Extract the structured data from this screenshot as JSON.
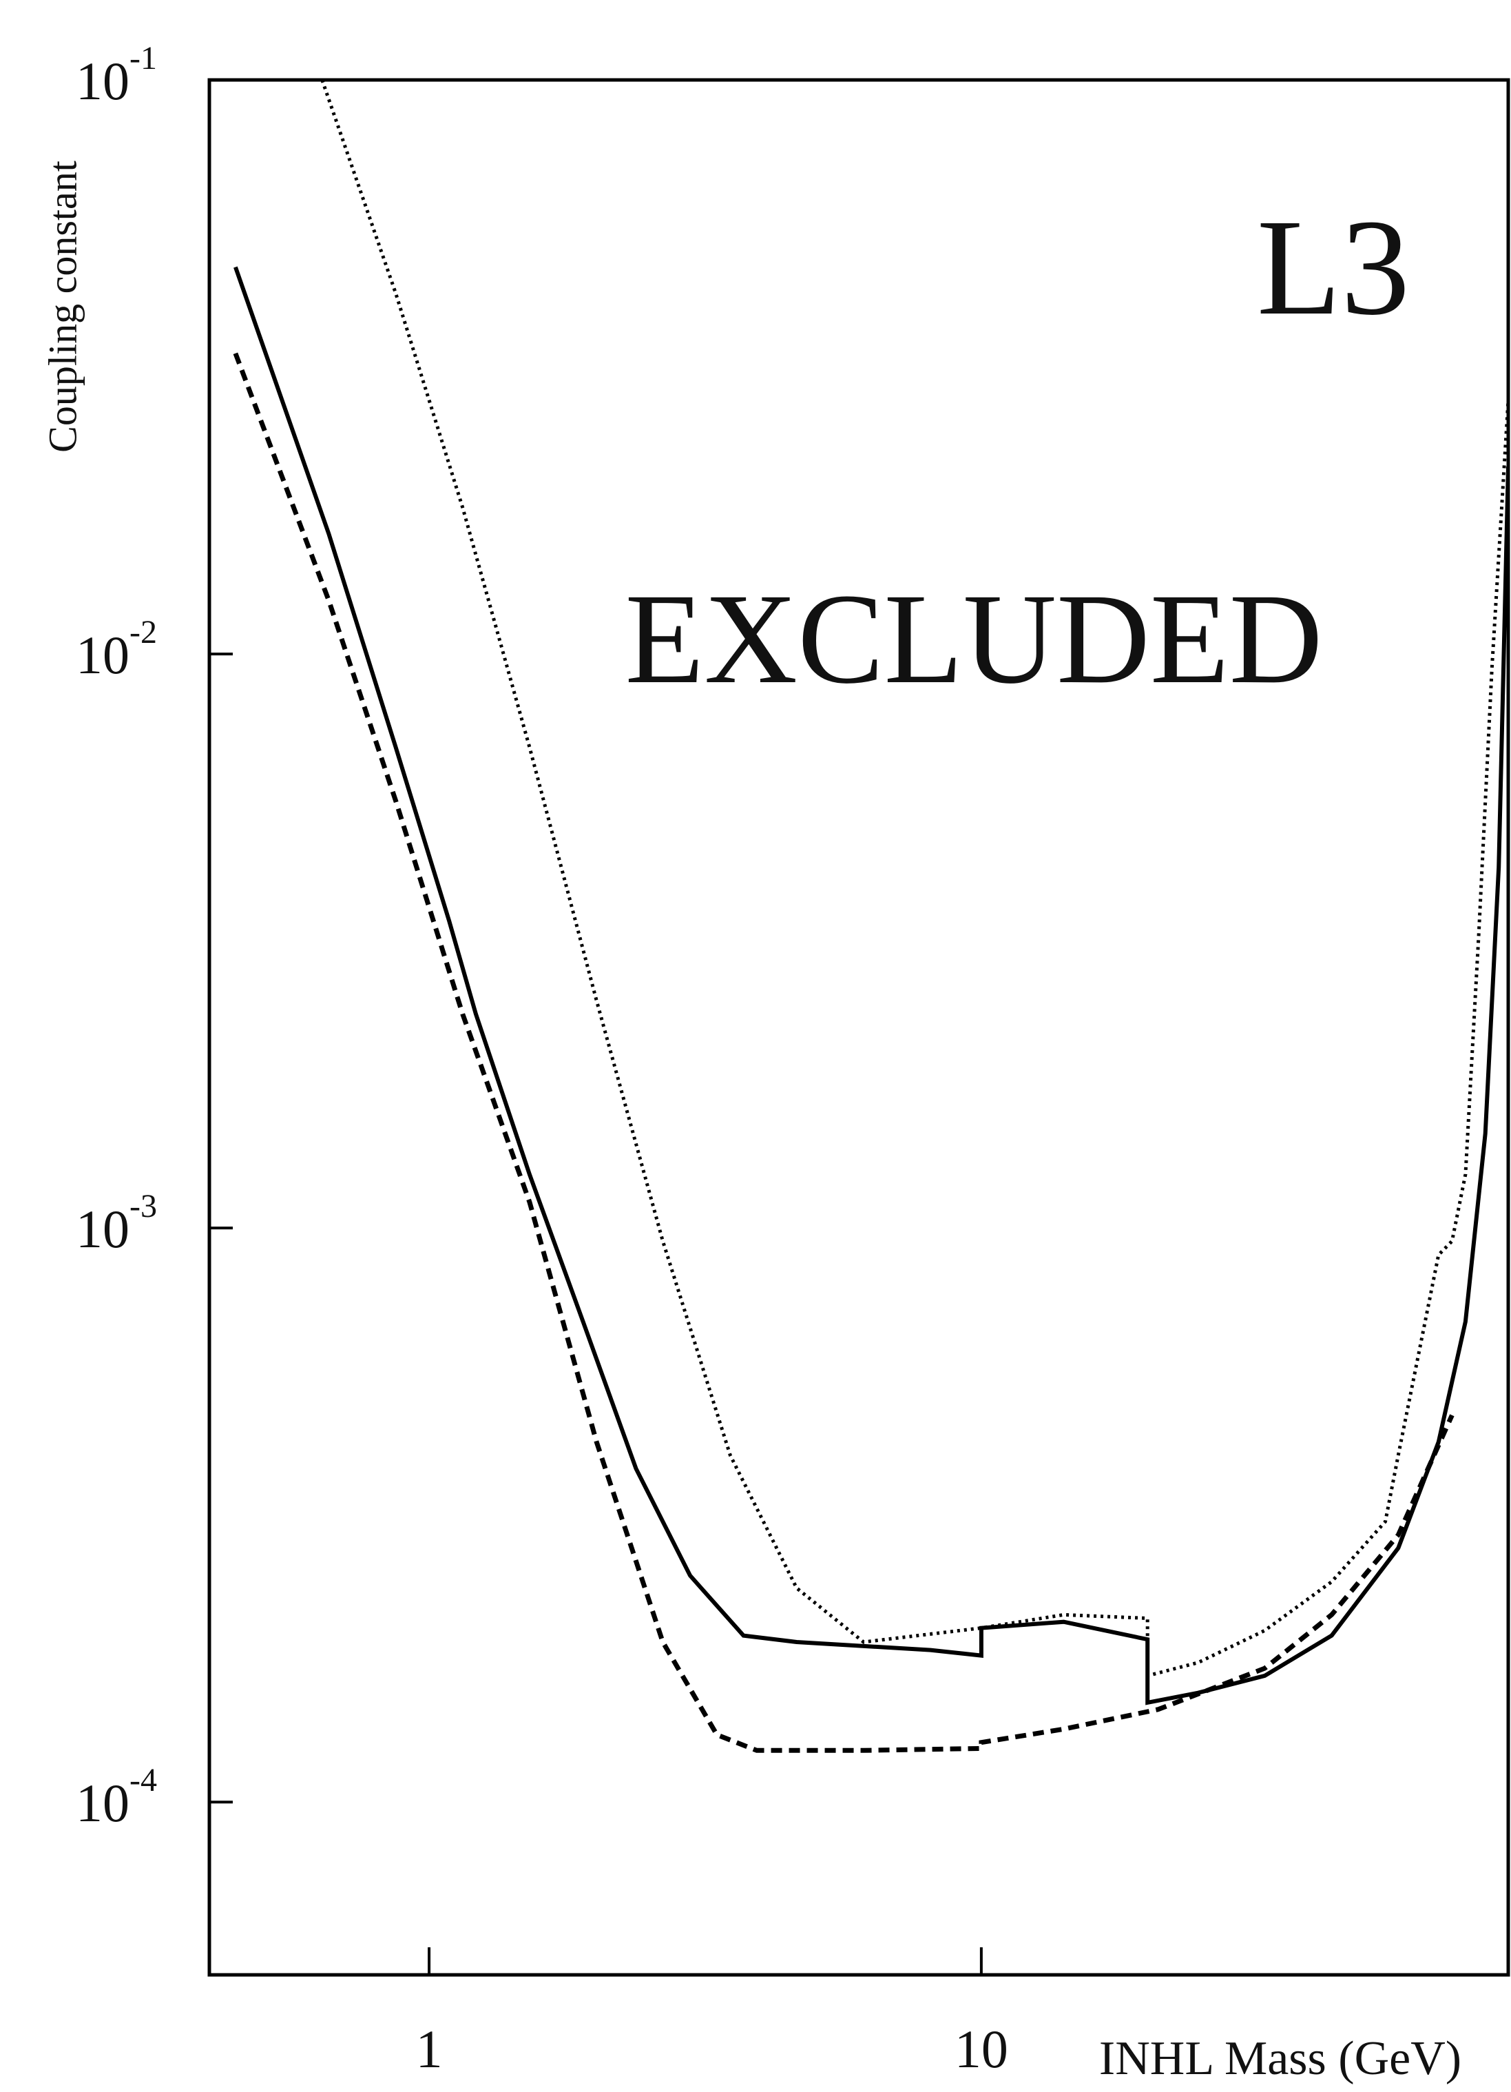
{
  "chart_data": {
    "type": "line",
    "x_label": "INHL Mass (GeV)",
    "y_label": "Coupling constant",
    "annotations": [
      "L3",
      "EXCLUDED"
    ],
    "xlog": true,
    "ylog": true,
    "xlim": [
      0.4,
      90
    ],
    "ylim": [
      5e-05,
      0.1
    ],
    "xticks": [
      1,
      10
    ],
    "yticks": [
      {
        "value": 0.1,
        "label": "10",
        "exponent": "-1"
      },
      {
        "value": 0.01,
        "label": "10",
        "exponent": "-2"
      },
      {
        "value": 0.001,
        "label": "10",
        "exponent": "-3"
      },
      {
        "value": 0.0001,
        "label": "10",
        "exponent": "-4"
      }
    ],
    "series": [
      {
        "color": "#000000",
        "style": "solid",
        "x": [
          0.446,
          0.658,
          0.87,
          1.087,
          1.215,
          1.52,
          1.9,
          2.37,
          2.97,
          3.71,
          4.63,
          8.09,
          10,
          10,
          14.1,
          20,
          20,
          24.7,
          32.6,
          43.1,
          56.9,
          67.3,
          75.3,
          81.8,
          86.5,
          90
        ],
        "values": [
          0.0472,
          0.0162,
          0.00688,
          0.00343,
          0.00236,
          0.00124,
          0.000687,
          0.000381,
          0.000248,
          0.000195,
          0.00019,
          0.000184,
          0.00018,
          0.000201,
          0.000206,
          0.000192,
          0.000149,
          0.000155,
          0.000166,
          0.000195,
          0.000277,
          0.000424,
          0.000687,
          0.00146,
          0.00425,
          0.0212
        ]
      },
      {
        "color": "#000000",
        "style": "dashed",
        "x": [
          0.446,
          0.658,
          0.87,
          1.15,
          1.52,
          2.01,
          2.65,
          3.32,
          3.92,
          6.12,
          10,
          10,
          14.1,
          20.9,
          32.6,
          43.1,
          56.9,
          71.2
        ],
        "values": [
          0.0334,
          0.0124,
          0.00555,
          0.00236,
          0.00111,
          0.000424,
          0.00019,
          0.000131,
          0.000123,
          0.000123,
          0.000124,
          0.000127,
          0.000134,
          0.000145,
          0.000171,
          0.000212,
          0.000292,
          0.000472
        ]
      },
      {
        "color": "#000000",
        "style": "dotted",
        "x": [
          0.64,
          0.87,
          1.15,
          1.52,
          2.01,
          2.65,
          3.51,
          4.63,
          6.12,
          10,
          14.1,
          20,
          20,
          24.7,
          32.6,
          43.1,
          53.9,
          56.9,
          67.3,
          71.2,
          75.3,
          79.6,
          84.1,
          90
        ],
        "values": [
          0.1,
          0.0425,
          0.018,
          0.00688,
          0.00249,
          0.000949,
          0.000402,
          0.000236,
          0.00019,
          0.000201,
          0.000212,
          0.000209,
          0.000166,
          0.000175,
          0.000199,
          0.000242,
          0.000308,
          0.000402,
          0.000898,
          0.000949,
          0.00124,
          0.00325,
          0.00949,
          0.0277
        ]
      }
    ]
  }
}
